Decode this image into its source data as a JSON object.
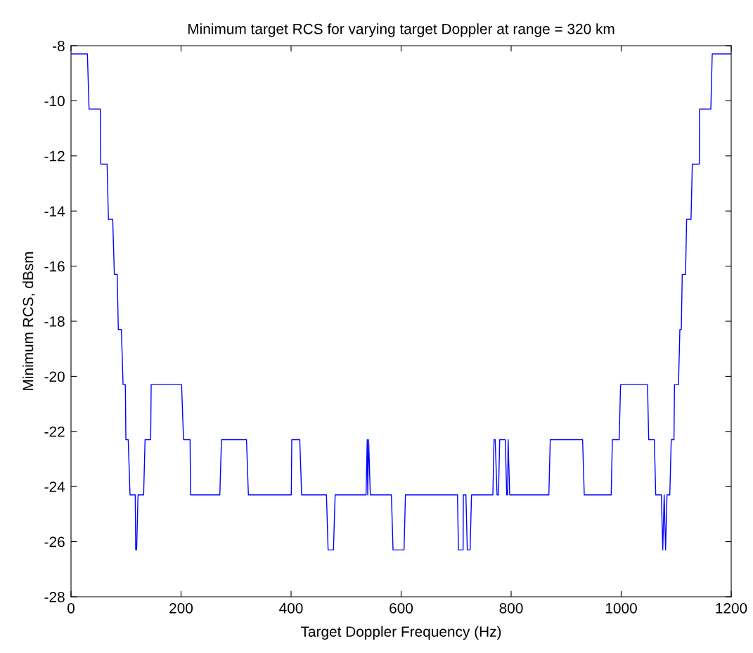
{
  "chart_data": {
    "type": "line",
    "title": "Minimum target RCS for varying target Doppler at range = 320 km",
    "xlabel": "Target Doppler Frequency (Hz)",
    "ylabel": "Minimum RCS, dBsm",
    "xlim": [
      0,
      1200
    ],
    "xticks": [
      0,
      200,
      400,
      600,
      800,
      1000,
      1200
    ],
    "ylim": [
      -28,
      -8
    ],
    "yticks": [
      -28,
      -26,
      -24,
      -22,
      -20,
      -18,
      -16,
      -14,
      -12,
      -10,
      -8
    ],
    "grid": false,
    "marker": "none",
    "line_style": "solid",
    "series": [
      {
        "color": "#0000ff",
        "x": [
          0,
          29.8,
          32.8,
          53.3,
          54,
          65.6,
          68,
          75.8,
          78.8,
          84,
          86,
          91.6,
          94.6,
          98.8,
          99.7,
          104,
          107.3,
          116.7,
          117.6,
          119.3,
          121.8,
          132,
          134.6,
          144.8,
          145.7,
          201,
          204.5,
          216.4,
          217.3,
          270.5,
          273.5,
          319,
          322.4,
          400.4,
          401.3,
          415.8,
          419.2,
          464.3,
          467.3,
          477,
          480.1,
          536.3,
          538.4,
          539.3,
          541,
          544,
          582.4,
          585.3,
          605.3,
          607.9,
          702.5,
          704.2,
          712.7,
          713.1,
          717.8,
          720.3,
          725.4,
          728,
          766.8,
          768.9,
          771,
          774.4,
          777,
          779.2,
          789.3,
          792,
          793.6,
          794.5,
          797.4,
          868.6,
          871.1,
          929.9,
          932.9,
          981.9,
          984,
          996.4,
          998.9,
          1047.9,
          1050,
          1060.3,
          1062.8,
          1073.1,
          1075.6,
          1078.2,
          1080.7,
          1083.3,
          1088.4,
          1091,
          1096,
          1096.9,
          1104.2,
          1106.7,
          1109.3,
          1111,
          1117,
          1119,
          1127,
          1129.3,
          1142,
          1142.5,
          1163,
          1165.5,
          1200
        ],
        "values": [
          -8.3,
          -8.3,
          -10.3,
          -10.3,
          -12.3,
          -12.3,
          -14.3,
          -14.3,
          -16.3,
          -16.3,
          -18.3,
          -18.3,
          -20.3,
          -20.3,
          -22.3,
          -22.3,
          -24.3,
          -24.3,
          -26.3,
          -26.3,
          -24.3,
          -24.3,
          -22.3,
          -22.3,
          -20.3,
          -20.3,
          -22.3,
          -22.3,
          -24.3,
          -24.3,
          -22.3,
          -22.3,
          -24.3,
          -24.3,
          -22.3,
          -22.3,
          -24.3,
          -24.3,
          -26.3,
          -26.3,
          -24.3,
          -24.3,
          -22.3,
          -24.3,
          -22.3,
          -24.3,
          -24.3,
          -26.3,
          -26.3,
          -24.3,
          -24.3,
          -26.3,
          -26.3,
          -24.3,
          -24.3,
          -26.3,
          -26.3,
          -24.3,
          -24.3,
          -22.3,
          -22.3,
          -24.3,
          -24.3,
          -22.3,
          -22.3,
          -24.3,
          -24.3,
          -22.3,
          -24.3,
          -24.3,
          -22.3,
          -22.3,
          -24.3,
          -24.3,
          -22.3,
          -22.3,
          -20.3,
          -20.3,
          -22.3,
          -22.3,
          -24.3,
          -24.3,
          -26.3,
          -24.3,
          -26.3,
          -24.3,
          -24.3,
          -22.3,
          -22.3,
          -20.3,
          -20.3,
          -18.3,
          -18.3,
          -16.3,
          -16.3,
          -14.3,
          -14.3,
          -12.3,
          -12.3,
          -10.3,
          -10.3,
          -8.3,
          -8.3
        ]
      }
    ]
  }
}
